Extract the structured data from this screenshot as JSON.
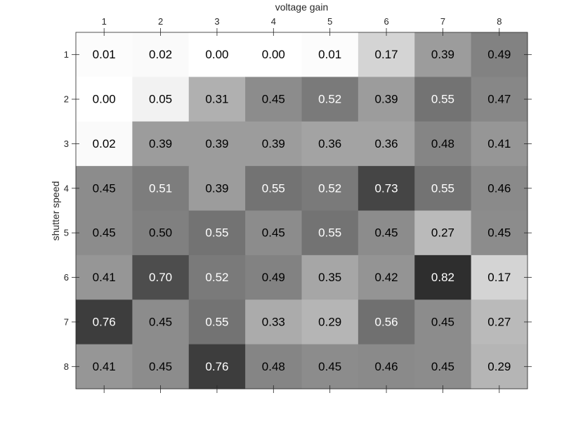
{
  "chart_data": {
    "type": "heatmap",
    "title": "",
    "xlabel": "voltage gain",
    "ylabel": "shutter speed",
    "x_ticks": [
      "1",
      "2",
      "3",
      "4",
      "5",
      "6",
      "7",
      "8"
    ],
    "y_ticks": [
      "1",
      "2",
      "3",
      "4",
      "5",
      "6",
      "7",
      "8"
    ],
    "x_axis_position": "top",
    "colormap": "grayscale (white = low, dark = high)",
    "values": [
      [
        0.01,
        0.02,
        0.0,
        0.0,
        0.01,
        0.17,
        0.39,
        0.49
      ],
      [
        0.0,
        0.05,
        0.31,
        0.45,
        0.52,
        0.39,
        0.55,
        0.47
      ],
      [
        0.02,
        0.39,
        0.39,
        0.39,
        0.36,
        0.36,
        0.48,
        0.41
      ],
      [
        0.45,
        0.51,
        0.39,
        0.55,
        0.52,
        0.73,
        0.55,
        0.46
      ],
      [
        0.45,
        0.5,
        0.55,
        0.45,
        0.55,
        0.45,
        0.27,
        0.45
      ],
      [
        0.41,
        0.7,
        0.52,
        0.49,
        0.35,
        0.42,
        0.82,
        0.17
      ],
      [
        0.76,
        0.45,
        0.55,
        0.33,
        0.29,
        0.56,
        0.45,
        0.27
      ],
      [
        0.41,
        0.45,
        0.76,
        0.48,
        0.45,
        0.46,
        0.45,
        0.29
      ]
    ],
    "labels": [
      [
        "0.01",
        "0.02",
        "0.00",
        "0.00",
        "0.01",
        "0.17",
        "0.39",
        "0.49"
      ],
      [
        "0.00",
        "0.05",
        "0.31",
        "0.45",
        "0.52",
        "0.39",
        "0.55",
        "0.47"
      ],
      [
        "0.02",
        "0.39",
        "0.39",
        "0.39",
        "0.36",
        "0.36",
        "0.48",
        "0.41"
      ],
      [
        "0.45",
        "0.51",
        "0.39",
        "0.55",
        "0.52",
        "0.73",
        "0.55",
        "0.46"
      ],
      [
        "0.45",
        "0.50",
        "0.55",
        "0.45",
        "0.55",
        "0.45",
        "0.27",
        "0.45"
      ],
      [
        "0.41",
        "0.70",
        "0.52",
        "0.49",
        "0.35",
        "0.42",
        "0.82",
        "0.17"
      ],
      [
        "0.76",
        "0.45",
        "0.55",
        "0.33",
        "0.29",
        "0.56",
        "0.45",
        "0.27"
      ],
      [
        "0.41",
        "0.45",
        "0.76",
        "0.48",
        "0.45",
        "0.46",
        "0.45",
        "0.29"
      ]
    ],
    "grid": false
  }
}
